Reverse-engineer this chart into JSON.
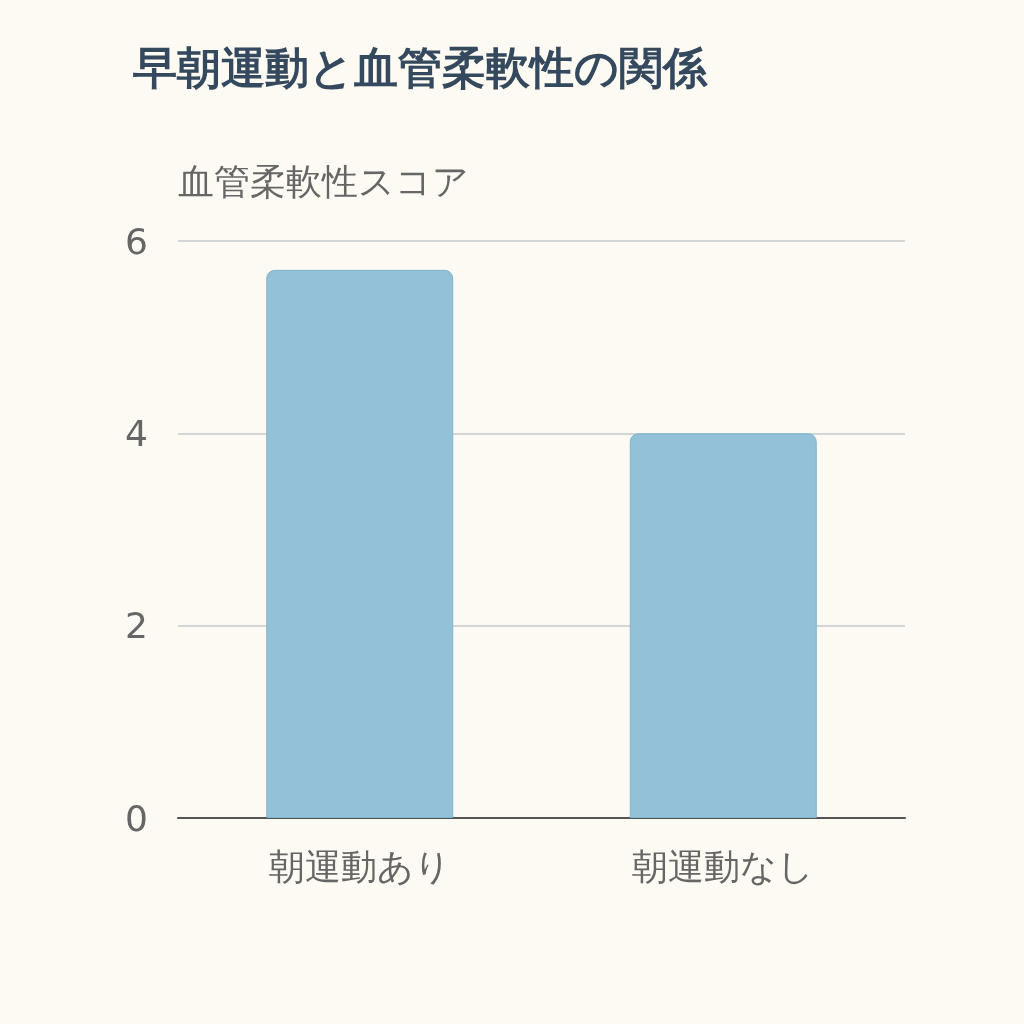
{
  "chart_data": {
    "type": "bar",
    "title": "早朝運動と血管柔軟性の関係",
    "ylabel": "血管柔軟性スコア",
    "categories": [
      "朝運動あり",
      "朝運動なし"
    ],
    "values": [
      5.7,
      4.0
    ],
    "color": "#93c1d7",
    "ylim": [
      0,
      6
    ],
    "yticks": [
      0,
      2,
      4,
      6
    ],
    "grid": "y"
  }
}
